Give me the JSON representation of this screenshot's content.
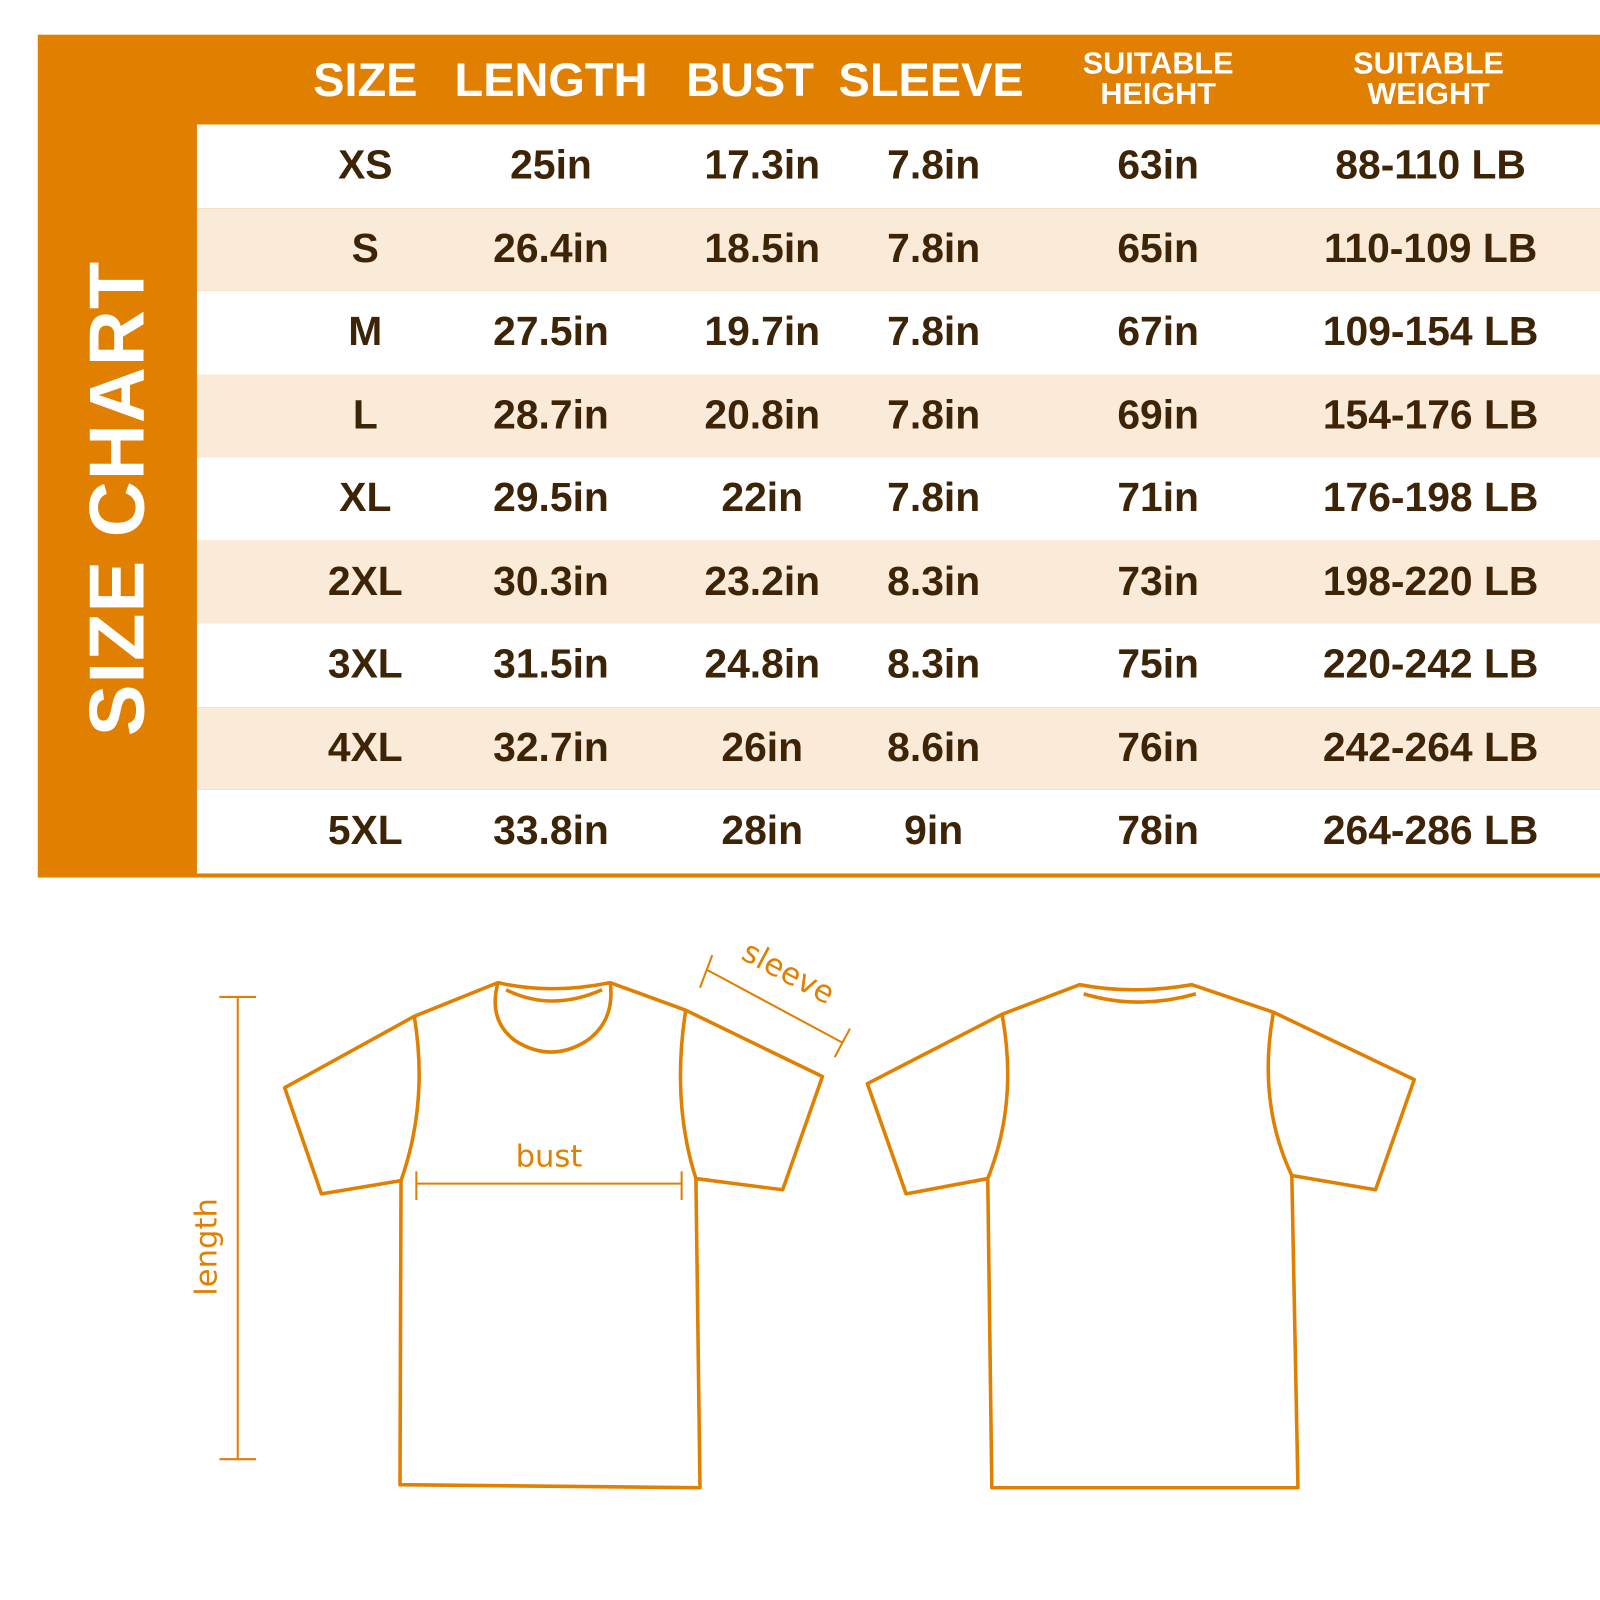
{
  "side_title": "SIZE CHART",
  "headers": [
    "SIZE",
    "LENGTH",
    "BUST",
    "SLEEVE",
    "SUITABLE HEIGHT",
    "SUITABLE WEIGHT"
  ],
  "rows": [
    [
      "XS",
      "25in",
      "17.3in",
      "7.8in",
      "63in",
      "88-110 LB"
    ],
    [
      "S",
      "26.4in",
      "18.5in",
      "7.8in",
      "65in",
      "110-109 LB"
    ],
    [
      "M",
      "27.5in",
      "19.7in",
      "7.8in",
      "67in",
      "109-154 LB"
    ],
    [
      "L",
      "28.7in",
      "20.8in",
      "7.8in",
      "69in",
      "154-176 LB"
    ],
    [
      "XL",
      "29.5in",
      "22in",
      "7.8in",
      "71in",
      "176-198 LB"
    ],
    [
      "2XL",
      "30.3in",
      "23.2in",
      "8.3in",
      "73in",
      "198-220 LB"
    ],
    [
      "3XL",
      "31.5in",
      "24.8in",
      "8.3in",
      "75in",
      "220-242 LB"
    ],
    [
      "4XL",
      "32.7in",
      "26in",
      "8.6in",
      "76in",
      "242-264 LB"
    ],
    [
      "5XL",
      "33.8in",
      "28in",
      "9in",
      "78in",
      "264-286 LB"
    ]
  ],
  "diagram": {
    "sleeve": "sleeve",
    "bust": "bust",
    "length": "length"
  },
  "colors": {
    "accent": "#e07f00",
    "row_alt": "#faead8",
    "text": "#3d2407"
  }
}
